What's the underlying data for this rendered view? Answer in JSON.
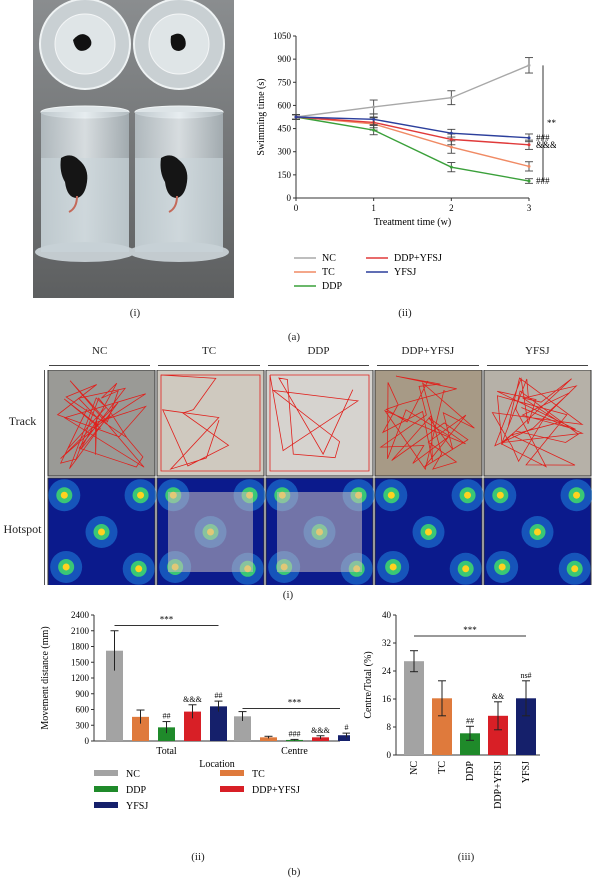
{
  "panel_a": {
    "caption": "(a)",
    "sub_i": "(i)",
    "sub_ii": "(ii)"
  },
  "panel_b": {
    "caption": "(b)",
    "sub_i": "(i)",
    "sub_ii": "(ii)",
    "sub_iii": "(iii)",
    "groups": [
      "NC",
      "TC",
      "DDP",
      "DDP+YFSJ",
      "YFSJ"
    ],
    "rows": [
      "Track",
      "Hotspot"
    ]
  },
  "colors": {
    "NC_line": "#a8a8a8",
    "TC_line": "#f08a64",
    "DDP_line": "#3aa03a",
    "DDPYFSJ_line": "#e03a3a",
    "YFSJ_line": "#2c3f9c",
    "NC_bar": "#a3a3a3",
    "TC_bar": "#df7a3c",
    "DDP_bar": "#1f8a2a",
    "DDPYFSJ_bar": "#d81f26",
    "YFSJ_bar": "#15206b"
  },
  "chart_data": [
    {
      "id": "swim",
      "type": "line",
      "xlabel": "Treatment time (w)",
      "ylabel": "Swimming time (s)",
      "x": [
        0,
        1,
        2,
        3
      ],
      "xlim": [
        0,
        3
      ],
      "ylim": [
        0,
        1050
      ],
      "yticks": [
        0,
        150,
        300,
        450,
        600,
        750,
        900,
        1050
      ],
      "series": [
        {
          "name": "NC",
          "color": "#a8a8a8",
          "values": [
            525,
            590,
            650,
            860
          ],
          "err": [
            15,
            45,
            45,
            50
          ],
          "mark": ""
        },
        {
          "name": "TC",
          "color": "#f08a64",
          "values": [
            525,
            480,
            330,
            205
          ],
          "err": [
            15,
            40,
            40,
            30
          ],
          "mark": ""
        },
        {
          "name": "DDP",
          "color": "#3aa03a",
          "values": [
            525,
            440,
            200,
            110
          ],
          "err": [
            15,
            30,
            30,
            15
          ],
          "mark": "###"
        },
        {
          "name": "DDP+YFSJ",
          "color": "#e03a3a",
          "values": [
            525,
            490,
            380,
            345
          ],
          "err": [
            15,
            35,
            35,
            30
          ],
          "mark": "&&&"
        },
        {
          "name": "YFSJ",
          "color": "#2c3f9c",
          "values": [
            525,
            510,
            420,
            390
          ],
          "err": [
            15,
            35,
            25,
            25
          ],
          "mark": "###"
        }
      ],
      "annotation": "***",
      "legend": "bottom"
    },
    {
      "id": "movement",
      "type": "bar",
      "xlabel": "Location",
      "ylabel": "Movement distance (mm)",
      "categories": [
        "Total",
        "Centre"
      ],
      "ylim": [
        0,
        2400
      ],
      "yticks": [
        0,
        300,
        600,
        900,
        1200,
        1500,
        1800,
        2100,
        2400
      ],
      "series": [
        {
          "name": "NC",
          "color": "#a3a3a3",
          "values": [
            1720,
            470
          ],
          "err": [
            380,
            90
          ],
          "marks": [
            "",
            ""
          ]
        },
        {
          "name": "TC",
          "color": "#df7a3c",
          "values": [
            460,
            70
          ],
          "err": [
            130,
            20
          ],
          "marks": [
            "",
            ""
          ]
        },
        {
          "name": "DDP",
          "color": "#1f8a2a",
          "values": [
            260,
            20
          ],
          "err": [
            110,
            10
          ],
          "marks": [
            "##",
            "###"
          ]
        },
        {
          "name": "DDP+YFSJ",
          "color": "#d81f26",
          "values": [
            560,
            70
          ],
          "err": [
            130,
            30
          ],
          "marks": [
            "&&&",
            "&&&"
          ]
        },
        {
          "name": "YFSJ",
          "color": "#15206b",
          "values": [
            660,
            110
          ],
          "err": [
            100,
            40
          ],
          "marks": [
            "##",
            "#"
          ]
        }
      ],
      "annotation": "***",
      "legend": "bottom"
    },
    {
      "id": "centre_total",
      "type": "bar",
      "ylabel": "Centre/Total (%)",
      "categories": [
        "NC",
        "TC",
        "DDP",
        "DDP+YFSJ",
        "YFSJ"
      ],
      "ylim": [
        0,
        40
      ],
      "yticks": [
        0,
        8,
        16,
        24,
        32,
        40
      ],
      "values": [
        26.8,
        16.2,
        6.2,
        11.2,
        16.2
      ],
      "err": [
        3,
        5,
        2,
        4,
        5
      ],
      "colors": [
        "#a3a3a3",
        "#df7a3c",
        "#1f8a2a",
        "#d81f26",
        "#15206b"
      ],
      "marks": [
        "",
        "",
        "##",
        "&&",
        "ns#"
      ],
      "annotation": "***"
    }
  ]
}
